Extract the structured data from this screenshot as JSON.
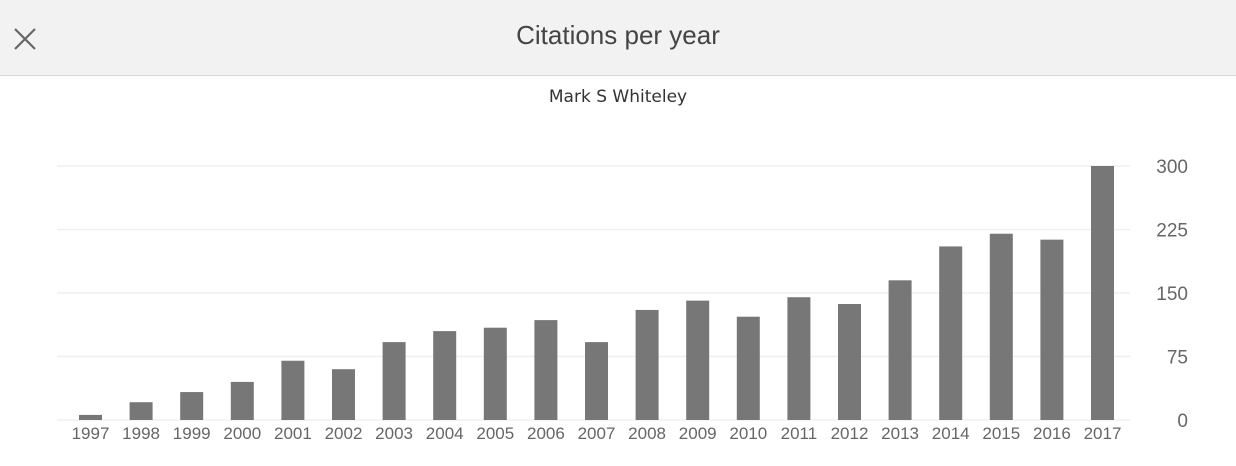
{
  "header": {
    "title": "Citations per year",
    "close_icon": "close-icon"
  },
  "chart_data": {
    "type": "bar",
    "title": "Mark S Whiteley",
    "xlabel": "",
    "ylabel": "",
    "categories": [
      "1997",
      "1998",
      "1999",
      "2000",
      "2001",
      "2002",
      "2003",
      "2004",
      "2005",
      "2006",
      "2007",
      "2008",
      "2009",
      "2010",
      "2011",
      "2012",
      "2013",
      "2014",
      "2015",
      "2016",
      "2017"
    ],
    "values": [
      6,
      21,
      33,
      45,
      70,
      60,
      92,
      105,
      109,
      118,
      92,
      130,
      141,
      122,
      145,
      137,
      165,
      205,
      220,
      213,
      300
    ],
    "ylim": [
      0,
      300
    ],
    "yticks": [
      "0",
      "75",
      "150",
      "225",
      "300"
    ],
    "y_axis_side": "right",
    "grid": true,
    "bar_color": "#777777",
    "grid_color": "#efefef"
  }
}
